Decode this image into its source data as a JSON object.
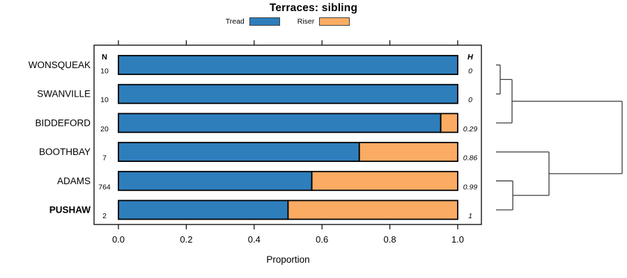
{
  "chart_data": {
    "type": "bar",
    "orientation": "horizontal",
    "stacked": true,
    "title": "Terraces: sibling",
    "xlabel": "Proportion",
    "xlim": [
      0,
      1
    ],
    "xticks": [
      "0.0",
      "0.2",
      "0.4",
      "0.6",
      "0.8",
      "1.0"
    ],
    "grid": false,
    "legend_position": "top-center",
    "legend": [
      {
        "name": "Tread",
        "color": "#2e7ebc"
      },
      {
        "name": "Riser",
        "color": "#fcab63"
      }
    ],
    "columns": {
      "n_header": "N",
      "h_header": "H"
    },
    "categories": [
      "WONSQUEAK",
      "SWANVILLE",
      "BIDDEFORD",
      "BOOTHBAY",
      "ADAMS",
      "PUSHAW"
    ],
    "series": [
      {
        "name": "Tread",
        "values": [
          1.0,
          1.0,
          0.95,
          0.71,
          0.57,
          0.5
        ]
      },
      {
        "name": "Riser",
        "values": [
          0.0,
          0.0,
          0.05,
          0.29,
          0.43,
          0.5
        ]
      }
    ],
    "rows": [
      {
        "label": "WONSQUEAK",
        "n": "10",
        "tread": 1.0,
        "riser": 0.0,
        "h": "0",
        "bold": false
      },
      {
        "label": "SWANVILLE",
        "n": "10",
        "tread": 1.0,
        "riser": 0.0,
        "h": "0",
        "bold": false
      },
      {
        "label": "BIDDEFORD",
        "n": "20",
        "tread": 0.95,
        "riser": 0.05,
        "h": "0.29",
        "bold": false
      },
      {
        "label": "BOOTHBAY",
        "n": "7",
        "tread": 0.71,
        "riser": 0.29,
        "h": "0.86",
        "bold": false
      },
      {
        "label": "ADAMS",
        "n": "764",
        "tread": 0.57,
        "riser": 0.43,
        "h": "0.99",
        "bold": false
      },
      {
        "label": "PUSHAW",
        "n": "2",
        "tread": 0.5,
        "riser": 0.5,
        "h": "1",
        "bold": true
      }
    ],
    "dendrogram": {
      "h": 1.0,
      "children": [
        {
          "h": 0.127,
          "children": [
            {
              "h": 0.033,
              "children": [
                {
                  "leaf": 0
                },
                {
                  "leaf": 1
                }
              ]
            },
            {
              "leaf": 2
            }
          ]
        },
        {
          "h": 0.42,
          "children": [
            {
              "leaf": 3
            },
            {
              "h": 0.133,
              "children": [
                {
                  "leaf": 4
                },
                {
                  "leaf": 5
                }
              ]
            }
          ]
        }
      ]
    }
  },
  "colors": {
    "bar_border": "#000000",
    "box_border": "#000000",
    "dendrogram_line": "#3c3c3c",
    "tick_line": "#000000",
    "text": "#000000"
  }
}
